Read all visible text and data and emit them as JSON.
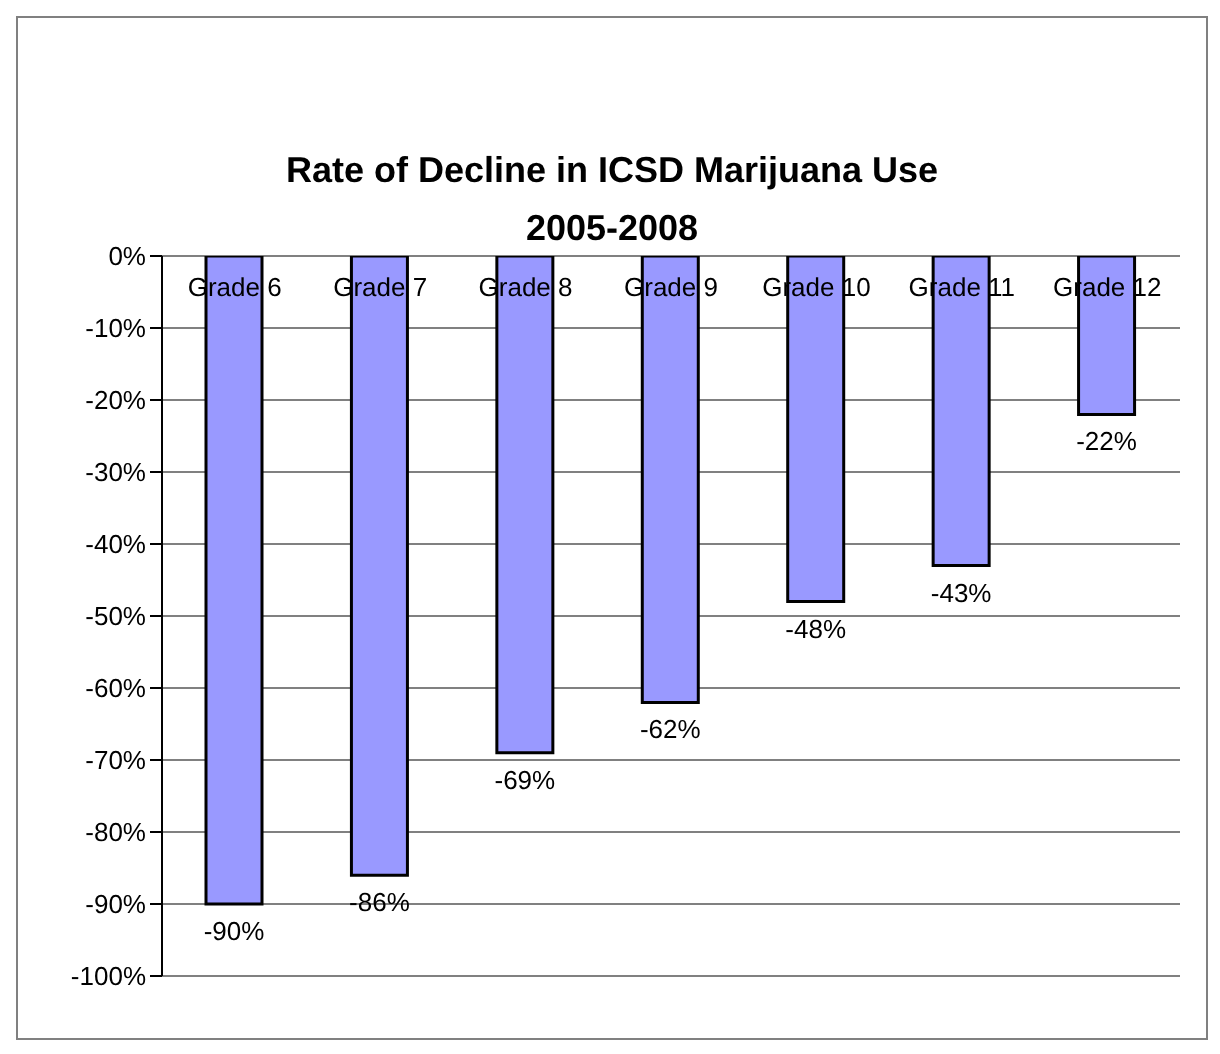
{
  "chart_data": {
    "type": "bar",
    "title": "Rate of Decline in ICSD Marijuana Use\n2005-2008",
    "categories": [
      "Grade 6",
      "Grade 7",
      "Grade 8",
      "Grade 9",
      "Grade 10",
      "Grade 11",
      "Grade 12"
    ],
    "values": [
      -90,
      -86,
      -69,
      -62,
      -48,
      -43,
      -22
    ],
    "value_labels": [
      "-90%",
      "-86%",
      "-69%",
      "-62%",
      "-48%",
      "-43%",
      "-22%"
    ],
    "color": "#9999ff",
    "ylim": [
      -100,
      0
    ],
    "yticks": [
      {
        "value": 0,
        "label": "0%"
      },
      {
        "value": -10,
        "label": "-10%"
      },
      {
        "value": -20,
        "label": "-20%"
      },
      {
        "value": -30,
        "label": "-30%"
      },
      {
        "value": -40,
        "label": "-40%"
      },
      {
        "value": -50,
        "label": "-50%"
      },
      {
        "value": -60,
        "label": "-60%"
      },
      {
        "value": -70,
        "label": "-70%"
      },
      {
        "value": -80,
        "label": "-80%"
      },
      {
        "value": -90,
        "label": "-90%"
      },
      {
        "value": -100,
        "label": "-100%"
      }
    ],
    "grid": "y"
  }
}
